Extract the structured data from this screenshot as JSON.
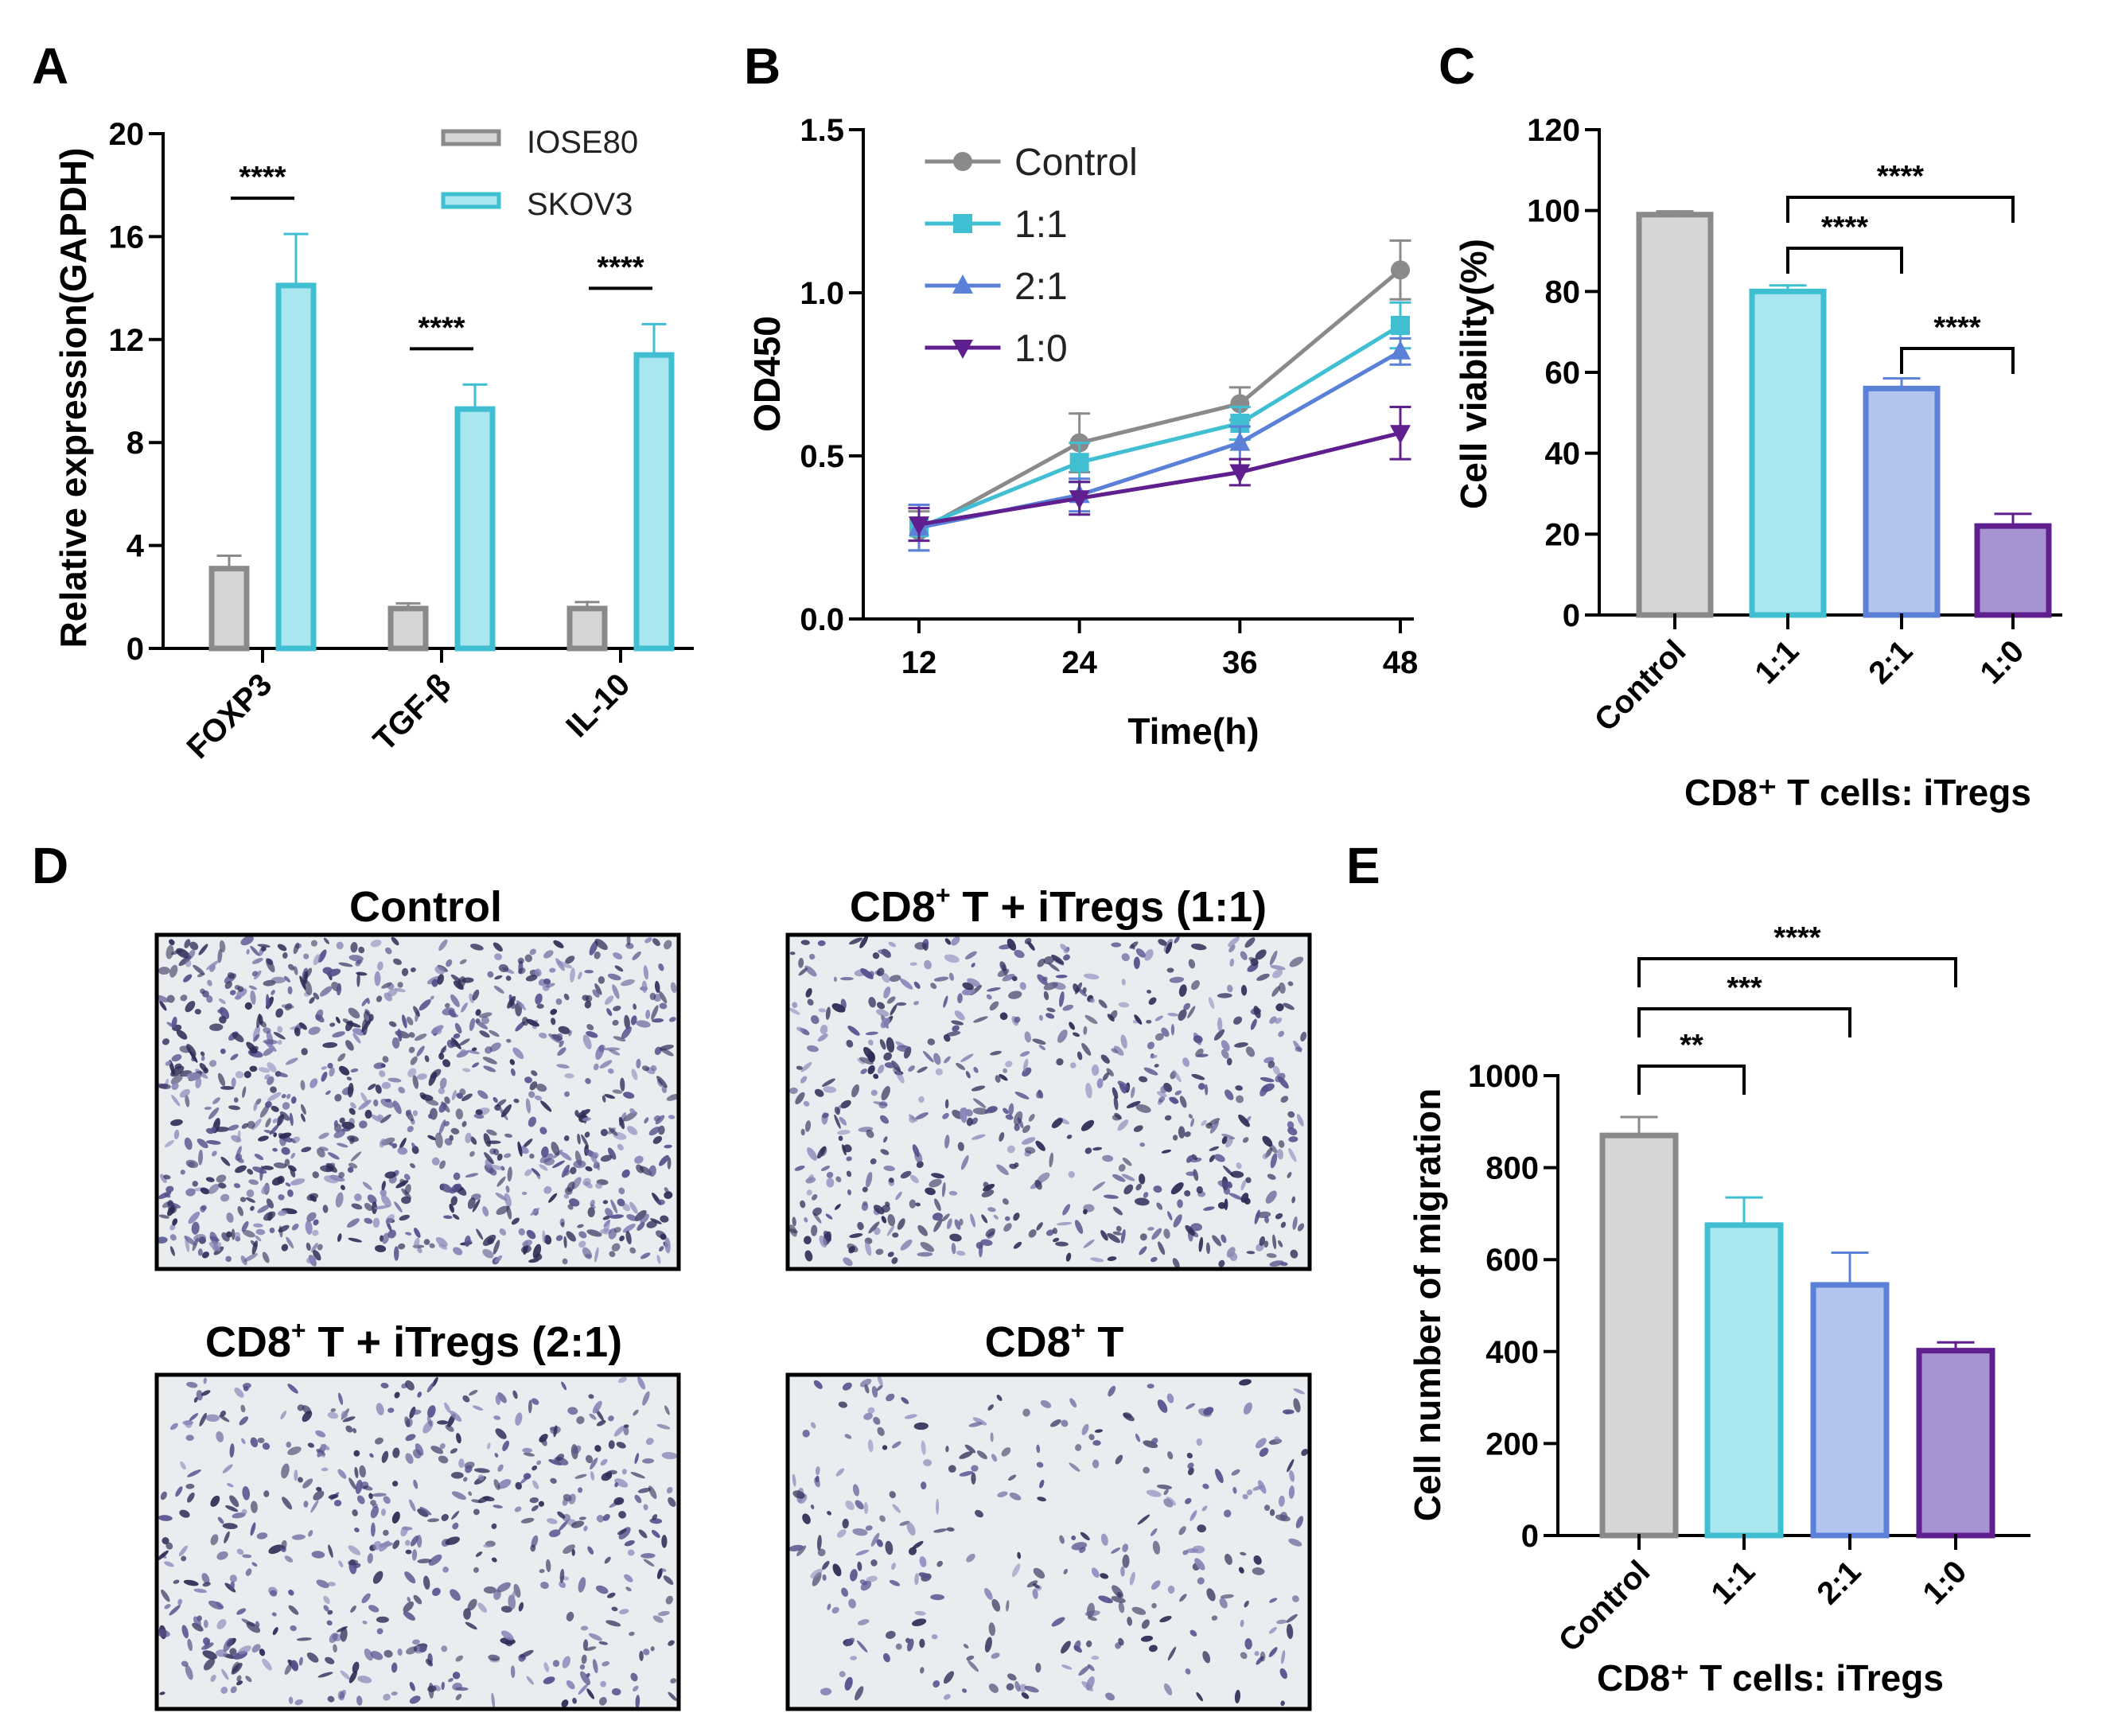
{
  "panels": {
    "a": "A",
    "b": "B",
    "c": "C",
    "d": "D",
    "e": "E"
  },
  "colors": {
    "control_edge": "#8a8a8a",
    "control_fill": "#d6d6d6",
    "r11_edge": "#3fbfd1",
    "r11_fill": "#a9e6ef",
    "r21_edge": "#5b80d8",
    "r21_fill": "#b3c5ee",
    "r10_edge": "#5f1f8f",
    "r10_fill": "#a893d2"
  },
  "chart_data": [
    {
      "panel": "A",
      "type": "bar",
      "ylabel": "Relative expression(GAPDH)",
      "ylim": [
        0,
        20
      ],
      "yticks": [
        "0",
        "4",
        "8",
        "12",
        "16",
        "20"
      ],
      "categories": [
        "FOXP3",
        "TGF-β",
        "IL-10"
      ],
      "series": [
        {
          "name": "IOSE80",
          "values": [
            3.1,
            1.55,
            1.55
          ],
          "errors": [
            0.5,
            0.2,
            0.25
          ]
        },
        {
          "name": "SKOV3",
          "values": [
            14.1,
            9.3,
            11.4
          ],
          "errors": [
            2.0,
            0.95,
            1.2
          ]
        }
      ],
      "significance": [
        "****",
        "****",
        "****"
      ]
    },
    {
      "panel": "B",
      "type": "line",
      "xlabel": "Time(h)",
      "ylabel": "OD450",
      "x": [
        12,
        24,
        36,
        48
      ],
      "xticks": [
        "12",
        "24",
        "36",
        "48"
      ],
      "ylim": [
        0,
        1.5
      ],
      "yticks": [
        "0.0",
        "0.5",
        "1.0",
        "1.5"
      ],
      "series": [
        {
          "name": "Control",
          "values": [
            0.27,
            0.54,
            0.66,
            1.07
          ],
          "errors": [
            0.06,
            0.09,
            0.05,
            0.09
          ]
        },
        {
          "name": "1:1",
          "values": [
            0.28,
            0.48,
            0.6,
            0.9
          ],
          "errors": [
            0.07,
            0.06,
            0.05,
            0.07
          ]
        },
        {
          "name": "2:1",
          "values": [
            0.28,
            0.38,
            0.54,
            0.82
          ],
          "errors": [
            0.07,
            0.05,
            0.05,
            0.04
          ]
        },
        {
          "name": "1:0",
          "values": [
            0.29,
            0.37,
            0.45,
            0.57
          ],
          "errors": [
            0.05,
            0.05,
            0.04,
            0.08
          ]
        }
      ]
    },
    {
      "panel": "C",
      "type": "bar",
      "ylabel": "Cell viability(%)",
      "xlabel": "CD8⁺ T cells: iTregs",
      "ylim": [
        0,
        120
      ],
      "yticks": [
        "0",
        "20",
        "40",
        "60",
        "80",
        "100",
        "120"
      ],
      "categories": [
        "Control",
        "1:1",
        "2:1",
        "1:0"
      ],
      "values": [
        99,
        80,
        56,
        22
      ],
      "errors": [
        0.8,
        1.5,
        2.5,
        3.0
      ],
      "comparisons": [
        {
          "from": 1,
          "to": 3,
          "label": "****"
        },
        {
          "from": 1,
          "to": 2,
          "label": "****"
        },
        {
          "from": 2,
          "to": 3,
          "label": "****"
        }
      ]
    },
    {
      "panel": "E",
      "type": "bar",
      "ylabel": "Cell number of migration",
      "xlabel": "CD8⁺ T cells: iTregs",
      "ylim": [
        0,
        1000
      ],
      "yticks": [
        "0",
        "200",
        "400",
        "600",
        "800",
        "1000"
      ],
      "categories": [
        "Control",
        "1:1",
        "2:1",
        "1:0"
      ],
      "values": [
        870,
        675,
        545,
        402
      ],
      "errors": [
        40,
        60,
        70,
        18
      ],
      "comparisons": [
        {
          "from": 0,
          "to": 3,
          "label": "****"
        },
        {
          "from": 0,
          "to": 2,
          "label": "***"
        },
        {
          "from": 0,
          "to": 1,
          "label": "**"
        }
      ]
    }
  ],
  "micrographs": [
    {
      "title": "Control",
      "density": 0.95
    },
    {
      "title_main": "CD8",
      "title_sup": "+",
      "title_rest": " T + iTregs (1:1)",
      "density": 0.6
    },
    {
      "title_main": "CD8",
      "title_sup": "+",
      "title_rest": " T + iTregs (2:1)",
      "density": 0.5
    },
    {
      "title_main": "CD8",
      "title_sup": "+",
      "title_rest": " T",
      "density": 0.25
    }
  ]
}
